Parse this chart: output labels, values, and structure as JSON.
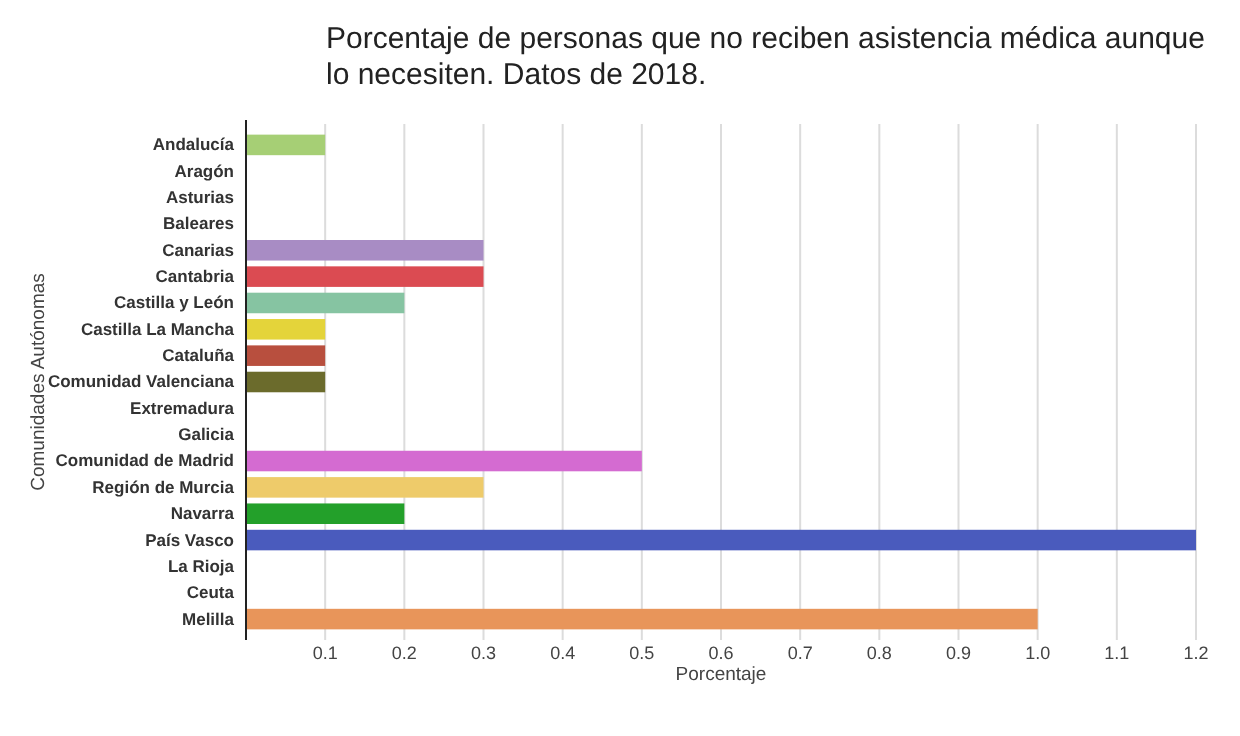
{
  "chart_data": {
    "type": "bar",
    "orientation": "horizontal",
    "title": "Porcentaje de personas que no reciben asistencia médica aunque lo necesiten. Datos de 2018.",
    "xlabel": "Porcentaje",
    "ylabel": "Comunidades Autónomas",
    "categories": [
      "Andalucía",
      "Aragón",
      "Asturias",
      "Baleares",
      "Canarias",
      "Cantabria",
      "Castilla y León",
      "Castilla La Mancha",
      "Cataluña",
      "Comunidad Valenciana",
      "Extremadura",
      "Galicia",
      "Comunidad de Madrid",
      "Región de Murcia",
      "Navarra",
      "País Vasco",
      "La Rioja",
      "Ceuta",
      "Melilla"
    ],
    "values": [
      0.1,
      0,
      0,
      0,
      0.3,
      0.3,
      0.2,
      0.1,
      0.1,
      0.1,
      0,
      0,
      0.5,
      0.3,
      0.2,
      1.2,
      0,
      0,
      1.0
    ],
    "colors": [
      "#a6cf75",
      "#cccccc",
      "#cccccc",
      "#cccccc",
      "#a88cc4",
      "#db4b52",
      "#86c4a2",
      "#e4d43a",
      "#b84f3e",
      "#6b6b2c",
      "#cccccc",
      "#cccccc",
      "#d46bd1",
      "#eecb6a",
      "#23a02a",
      "#4a5bbd",
      "#cccccc",
      "#cccccc",
      "#e8955a"
    ],
    "xlim": [
      0,
      1.2
    ],
    "xticks": [
      0.1,
      0.2,
      0.3,
      0.4,
      0.5,
      0.6,
      0.7,
      0.8,
      0.9,
      {
        "value": 1,
        "label": "1.0"
      },
      1.1,
      1.2
    ],
    "grid": "x"
  }
}
